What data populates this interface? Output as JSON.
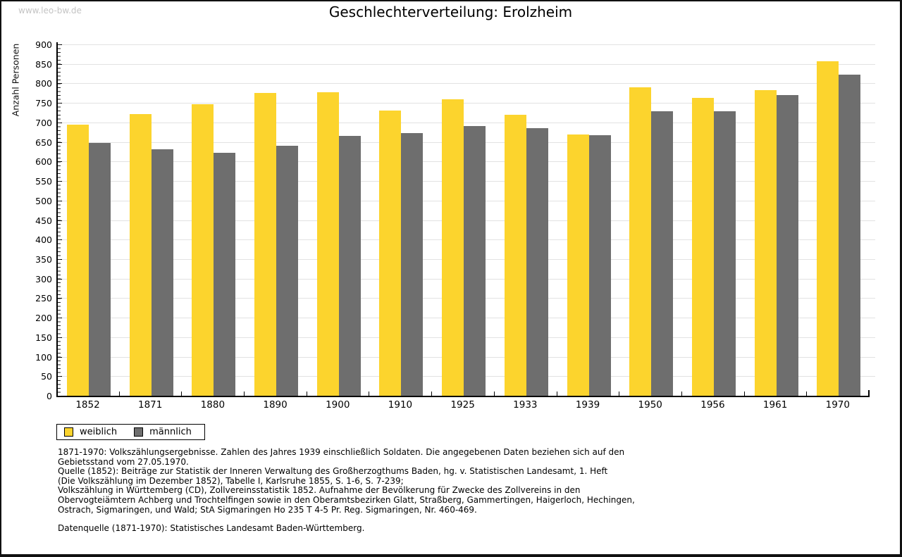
{
  "page": {
    "watermark": "www.leo-bw.de",
    "title": "Geschlechterverteilung: Erolzheim"
  },
  "chart_data": {
    "type": "bar",
    "title": "Geschlechterverteilung: Erolzheim",
    "xlabel": "",
    "ylabel": "Anzahl Personen",
    "ylim": [
      0,
      900
    ],
    "ytick_step": 50,
    "y_minor_step": 10,
    "grid": true,
    "legend_position": "bottom-left",
    "categories": [
      "1852",
      "1871",
      "1880",
      "1890",
      "1900",
      "1910",
      "1925",
      "1933",
      "1939",
      "1950",
      "1956",
      "1961",
      "1970"
    ],
    "series": [
      {
        "name": "weiblich",
        "color": "#fcd42d",
        "values": [
          695,
          722,
          747,
          775,
          777,
          730,
          760,
          719,
          669,
          790,
          763,
          782,
          856
        ]
      },
      {
        "name": "männlich",
        "color": "#6e6e6e",
        "values": [
          648,
          631,
          622,
          641,
          665,
          672,
          690,
          686,
          668,
          728,
          728,
          770,
          823
        ]
      }
    ]
  },
  "colors": {
    "weiblich": "#fcd42d",
    "maennlich": "#6e6e6e",
    "gridline": "#e2e2e2",
    "watermark": "#c4c4c4"
  },
  "footnotes": {
    "lines": [
      "1871-1970: Volkszählungsergebnisse. Zahlen des Jahres 1939 einschließlich Soldaten. Die angegebenen Daten beziehen sich auf den",
      "Gebietsstand vom 27.05.1970.",
      "Quelle (1852): Beiträge zur Statistik der Inneren Verwaltung des Großherzogthums Baden, hg. v. Statistischen Landesamt, 1. Heft",
      "(Die Volkszählung im Dezember 1852), Tabelle I, Karlsruhe 1855, S. 1-6, S. 7-239;",
      "Volkszählung in Württemberg (CD), Zollvereinsstatistik 1852. Aufnahme der Bevölkerung für Zwecke des Zollvereins in den",
      "Obervogteiämtern Achberg und Trochtelfingen sowie in den Oberamtsbezirken Glatt, Straßberg, Gammertingen, Haigerloch, Hechingen,",
      "Ostrach, Sigmaringen, und Wald; StA Sigmaringen Ho 235 T 4-5 Pr. Reg. Sigmaringen, Nr. 460-469."
    ],
    "datasource": "Datenquelle (1871-1970): Statistisches Landesamt Baden-Württemberg."
  }
}
